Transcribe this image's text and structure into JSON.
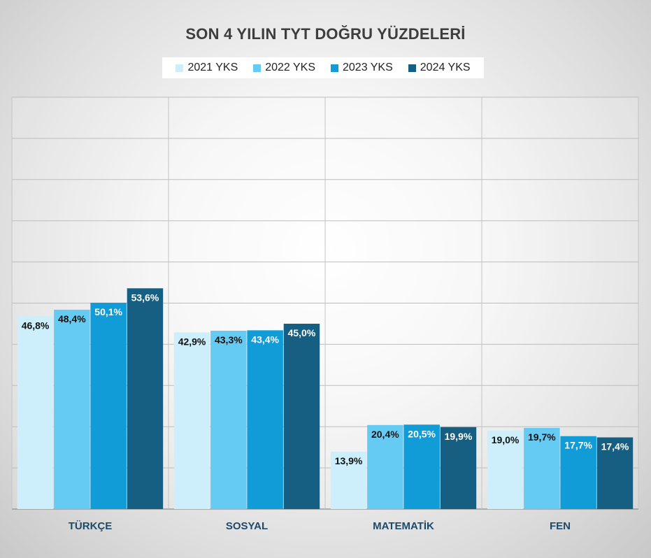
{
  "chart_data": {
    "type": "bar",
    "title": "SON 4 YILIN TYT DOĞRU YÜZDELERİ",
    "categories": [
      "TÜRKÇE",
      "SOSYAL",
      "MATEMATİK",
      "FEN"
    ],
    "series": [
      {
        "name": "2021 YKS",
        "color": "#cdeefb",
        "values": [
          46.8,
          42.9,
          13.9,
          19.0
        ],
        "labels": [
          "46,8%",
          "42,9%",
          "13,9%",
          "19,0%"
        ]
      },
      {
        "name": "2022 YKS",
        "color": "#66cbf2",
        "values": [
          48.4,
          43.3,
          20.4,
          19.7
        ],
        "labels": [
          "48,4%",
          "43,3%",
          "20,4%",
          "19,7%"
        ]
      },
      {
        "name": "2023 YKS",
        "color": "#119cd8",
        "values": [
          50.1,
          43.4,
          20.5,
          17.7
        ],
        "labels": [
          "50,1%",
          "43,4%",
          "20,5%",
          "17,7%"
        ]
      },
      {
        "name": "2024 YKS",
        "color": "#175f82",
        "values": [
          53.6,
          45.0,
          19.9,
          17.4
        ],
        "labels": [
          "53,6%",
          "45,0%",
          "19,9%",
          "17,4%"
        ]
      }
    ],
    "ylim": [
      0,
      100
    ],
    "grid": true,
    "legend_position": "top-center",
    "category_label_color": "#1b4a6b"
  }
}
